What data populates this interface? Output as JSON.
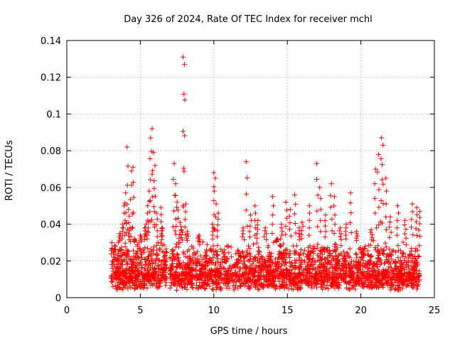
{
  "chart_data": {
    "type": "scatter",
    "title": "Day 326 of 2024, Rate Of TEC Index for receiver mchl",
    "xlabel": "GPS time / hours",
    "ylabel": "ROTI / TECUs",
    "xlim": [
      0,
      25
    ],
    "ylim": [
      0,
      0.14
    ],
    "xticks": [
      0,
      5,
      10,
      15,
      20,
      25
    ],
    "xtick_labels": [
      "0",
      "5",
      "10",
      "15",
      "20",
      "25"
    ],
    "yticks": [
      0,
      0.02,
      0.04,
      0.06,
      0.08,
      0.1,
      0.12,
      0.14
    ],
    "ytick_labels": [
      "0",
      "0.02",
      "0.04",
      "0.06",
      "0.08",
      "0.1",
      "0.12",
      "0.14"
    ],
    "grid": true,
    "marker": "+",
    "color": "#ff0000",
    "series": [
      {
        "name": "ROTI",
        "x": [
          3.1,
          3.2,
          3.3,
          3.4,
          3.5,
          3.6,
          3.7,
          3.8,
          3.9,
          4.0,
          4.1,
          4.2,
          4.3,
          4.4,
          4.5,
          4.6,
          4.7,
          4.8,
          4.9,
          5.0,
          5.1,
          5.2,
          5.3,
          5.4,
          5.5,
          5.6,
          5.7,
          5.8,
          5.9,
          6.0,
          6.1,
          6.2,
          6.3,
          6.4,
          6.5,
          6.6,
          6.7,
          7.2,
          7.3,
          7.4,
          7.5,
          7.6,
          7.7,
          7.8,
          7.9,
          8.0,
          8.1,
          8.2,
          8.5,
          9.0,
          9.5,
          9.9,
          10.0,
          10.1,
          10.3,
          10.7,
          11.0,
          11.5,
          12.0,
          12.2,
          12.5,
          12.8,
          13.0,
          13.5,
          14.0,
          14.3,
          14.6,
          14.9,
          15.2,
          15.5,
          15.8,
          16.0,
          16.5,
          16.8,
          17.0,
          17.2,
          17.6,
          18.0,
          18.2,
          18.6,
          19.0,
          19.3,
          19.7,
          20.0,
          20.3,
          20.7,
          21.0,
          21.2,
          21.4,
          21.5,
          21.7,
          22.0,
          22.5,
          23.0,
          23.5,
          23.8,
          24.0
        ],
        "y": [
          0.016,
          0.022,
          0.028,
          0.018,
          0.03,
          0.035,
          0.026,
          0.04,
          0.05,
          0.057,
          0.082,
          0.048,
          0.038,
          0.069,
          0.071,
          0.032,
          0.024,
          0.028,
          0.03,
          0.034,
          0.022,
          0.026,
          0.038,
          0.04,
          0.05,
          0.058,
          0.087,
          0.092,
          0.079,
          0.072,
          0.046,
          0.03,
          0.026,
          0.049,
          0.038,
          0.022,
          0.018,
          0.024,
          0.073,
          0.062,
          0.052,
          0.03,
          0.041,
          0.037,
          0.131,
          0.127,
          0.051,
          0.036,
          0.028,
          0.034,
          0.026,
          0.04,
          0.068,
          0.065,
          0.046,
          0.026,
          0.028,
          0.024,
          0.038,
          0.074,
          0.045,
          0.05,
          0.042,
          0.038,
          0.055,
          0.032,
          0.04,
          0.052,
          0.048,
          0.056,
          0.038,
          0.041,
          0.05,
          0.028,
          0.073,
          0.06,
          0.045,
          0.062,
          0.055,
          0.038,
          0.04,
          0.057,
          0.036,
          0.026,
          0.028,
          0.037,
          0.07,
          0.078,
          0.087,
          0.083,
          0.065,
          0.044,
          0.05,
          0.042,
          0.051,
          0.049,
          0.047
        ]
      }
    ],
    "dense_band": {
      "x_start": 3.0,
      "x_end": 24.0,
      "y_low": 0.004,
      "y_typical_max": 0.03,
      "gap_start": 6.8,
      "gap_end": 7.0
    }
  }
}
